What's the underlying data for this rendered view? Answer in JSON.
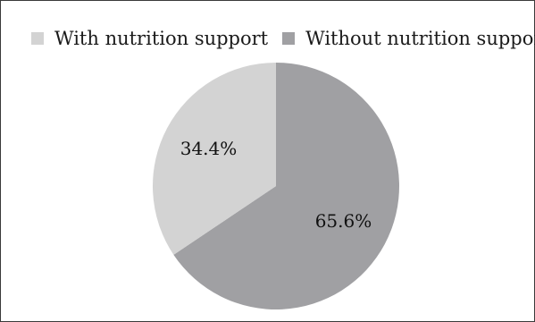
{
  "chart_data": {
    "type": "pie",
    "categories": [
      "With nutrition support",
      "Without nutrition support"
    ],
    "values": [
      34.4,
      65.6
    ],
    "labels": [
      "34.4%",
      "65.6%"
    ],
    "legend_position": "top",
    "colors": [
      "#d3d3d3",
      "#a0a0a3"
    ]
  }
}
